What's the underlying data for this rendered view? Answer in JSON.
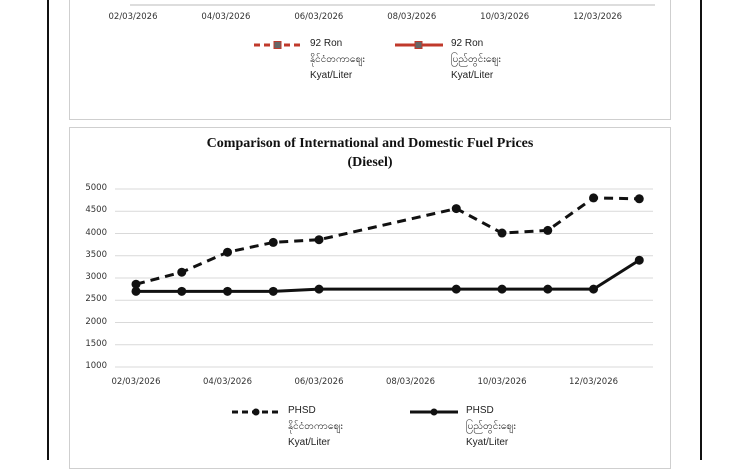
{
  "top_chart": {
    "x_tick_labels": [
      "02/03/2026",
      "04/03/2026",
      "06/03/2026",
      "08/03/2026",
      "10/03/2026",
      "12/03/2026"
    ],
    "legend": [
      {
        "label_lines": [
          "92 Ron",
          "နိုင်ငံတကာဈေး",
          "Kyat/Liter"
        ],
        "style": "dashed"
      },
      {
        "label_lines": [
          "92 Ron",
          "ပြည်တွင်းဈေး",
          "Kyat/Liter"
        ],
        "style": "solid"
      }
    ]
  },
  "chart_data": {
    "type": "line",
    "title": "Comparison of International and Domestic Fuel Prices",
    "subtitle": "(Diesel)",
    "xlabel": "",
    "ylabel": "",
    "x_tick_labels": [
      "02/03/2026",
      "04/03/2026",
      "06/03/2026",
      "08/03/2026",
      "10/03/2026",
      "12/03/2026"
    ],
    "y_tick_labels": [
      "5000",
      "4500",
      "4000",
      "3500",
      "3000",
      "2500",
      "2000",
      "1500",
      "1000"
    ],
    "ylim": [
      1000,
      5000
    ],
    "grid": true,
    "legend_position": "bottom",
    "series": [
      {
        "name": "PHSD နိုင်ငံတကာဈေး Kyat/Liter",
        "style": "dashed",
        "color": "#111111",
        "points": [
          {
            "x": "02/03/2026",
            "y": 2860
          },
          {
            "x": "03/03/2026",
            "y": 3130
          },
          {
            "x": "04/03/2026",
            "y": 3580
          },
          {
            "x": "05/03/2026",
            "y": 3800
          },
          {
            "x": "06/03/2026",
            "y": 3860
          },
          {
            "x": "09/03/2026",
            "y": 4560
          },
          {
            "x": "10/03/2026",
            "y": 4010
          },
          {
            "x": "11/03/2026",
            "y": 4070
          },
          {
            "x": "12/03/2026",
            "y": 4800
          },
          {
            "x": "13/03/2026",
            "y": 4780
          }
        ]
      },
      {
        "name": "PHSD ပြည်တွင်းဈေး Kyat/Liter",
        "style": "solid",
        "color": "#111111",
        "points": [
          {
            "x": "02/03/2026",
            "y": 2700
          },
          {
            "x": "03/03/2026",
            "y": 2700
          },
          {
            "x": "04/03/2026",
            "y": 2700
          },
          {
            "x": "05/03/2026",
            "y": 2700
          },
          {
            "x": "06/03/2026",
            "y": 2750
          },
          {
            "x": "09/03/2026",
            "y": 2750
          },
          {
            "x": "10/03/2026",
            "y": 2750
          },
          {
            "x": "11/03/2026",
            "y": 2750
          },
          {
            "x": "12/03/2026",
            "y": 2750
          },
          {
            "x": "13/03/2026",
            "y": 3400
          }
        ]
      }
    ],
    "legend": [
      {
        "label_lines": [
          "PHSD",
          "နိုင်ငံတကာဈေး",
          "Kyat/Liter"
        ],
        "style": "dashed"
      },
      {
        "label_lines": [
          "PHSD",
          "ပြည်တွင်းဈေး",
          "Kyat/Liter"
        ],
        "style": "solid"
      }
    ]
  }
}
